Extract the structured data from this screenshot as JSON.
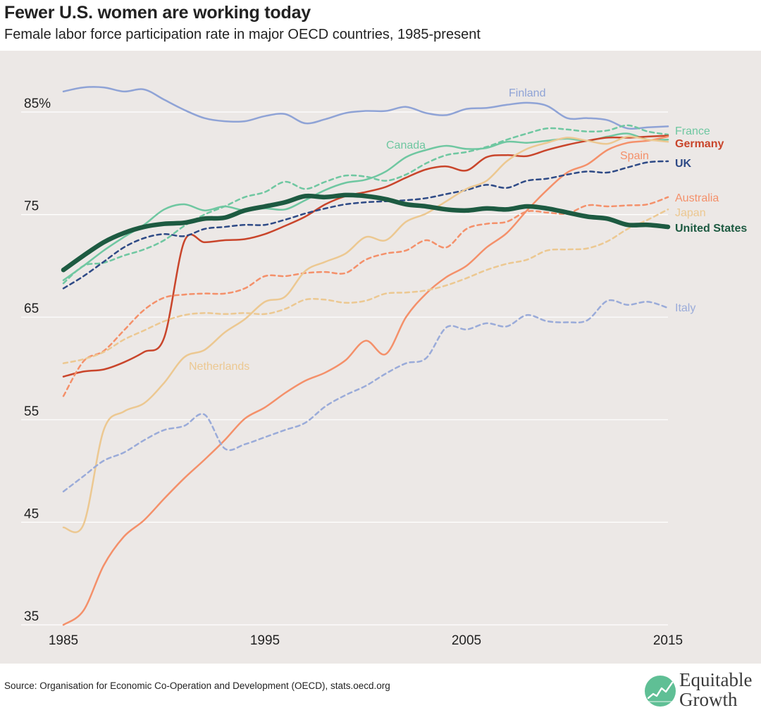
{
  "header": {
    "title": "Fewer U.S. women are working today",
    "subtitle": "Female labor force participation rate in major OECD countries, 1985-present"
  },
  "footer": {
    "source": "Source: Organisation for Economic Co-Operation and Development (OECD), stats.oecd.org",
    "logo_line1": "Equitable",
    "logo_line2": "Growth",
    "logo_icon": "rising-line-chart-circle-icon"
  },
  "colors": {
    "background": "#ece8e6",
    "grid": "#ffffff",
    "finland": "#8fa3d6",
    "france": "#6fc7a1",
    "germany": "#c9452b",
    "uk": "#2e4a86",
    "australia": "#f4906a",
    "japan": "#ecc891",
    "united_states": "#1d5a41",
    "italy": "#9aabd9",
    "canada": "#6fc7a1",
    "netherlands": "#ecc891",
    "spain": "#f4906a",
    "logo_green": "#5fbf95"
  },
  "chart_data": {
    "type": "line",
    "xlim": [
      1985,
      2015
    ],
    "ylim": [
      35,
      90
    ],
    "x_ticks": [
      1985,
      1995,
      2005,
      2015
    ],
    "x_tick_labels": [
      "1985",
      "1995",
      "2005",
      "2015"
    ],
    "y_ticks": [
      35,
      45,
      55,
      65,
      75,
      85
    ],
    "y_tick_labels": [
      "35",
      "45",
      "55",
      "65",
      "75",
      "85%"
    ],
    "x": [
      1985,
      1986,
      1987,
      1988,
      1989,
      1990,
      1991,
      1992,
      1993,
      1994,
      1995,
      1996,
      1997,
      1998,
      1999,
      2000,
      2001,
      2002,
      2003,
      2004,
      2005,
      2006,
      2007,
      2008,
      2009,
      2010,
      2011,
      2012,
      2013,
      2014,
      2015
    ],
    "series": [
      {
        "name": "Finland",
        "key": "finland",
        "dash": false,
        "width": 2.5,
        "label": "Finland",
        "values": [
          87.0,
          87.4,
          87.4,
          87.0,
          87.2,
          86.2,
          85.2,
          84.4,
          84.1,
          84.1,
          84.6,
          84.8,
          83.9,
          84.3,
          84.9,
          85.1,
          85.1,
          85.5,
          84.9,
          84.7,
          85.3,
          85.4,
          85.7,
          85.9,
          85.6,
          84.4,
          84.4,
          84.2,
          83.4,
          83.5,
          83.6
        ]
      },
      {
        "name": "France",
        "key": "france",
        "dash": true,
        "width": 2.5,
        "label": "France",
        "values": [
          68.3,
          70.0,
          70.3,
          71.0,
          71.6,
          72.5,
          73.9,
          75.0,
          75.8,
          76.7,
          77.2,
          78.2,
          77.5,
          78.2,
          78.8,
          78.7,
          78.3,
          78.9,
          80.0,
          80.8,
          81.1,
          81.6,
          82.3,
          82.9,
          83.4,
          83.3,
          83.1,
          83.2,
          83.7,
          83.1,
          82.8
        ]
      },
      {
        "name": "Canada",
        "key": "canada",
        "dash": false,
        "width": 2.5,
        "label": "Canada",
        "values": [
          68.6,
          70.0,
          71.5,
          72.8,
          74.0,
          75.5,
          76.0,
          75.4,
          75.8,
          75.4,
          75.6,
          75.5,
          76.4,
          77.4,
          78.1,
          78.4,
          79.2,
          80.6,
          81.3,
          81.7,
          81.4,
          81.5,
          82.1,
          82.0,
          82.2,
          82.4,
          82.2,
          82.6,
          82.9,
          82.3,
          82.3
        ]
      },
      {
        "name": "Germany",
        "key": "germany",
        "dash": false,
        "width": 2.5,
        "label": "Germany",
        "values": [
          59.2,
          59.7,
          59.9,
          60.6,
          61.6,
          63.0,
          72.4,
          72.3,
          72.5,
          72.6,
          73.1,
          73.9,
          74.8,
          76.0,
          76.8,
          77.2,
          77.7,
          78.6,
          79.4,
          79.7,
          79.3,
          80.6,
          80.8,
          80.7,
          81.3,
          81.8,
          82.2,
          82.5,
          82.5,
          82.6,
          82.7
        ]
      },
      {
        "name": "Spain",
        "key": "spain",
        "dash": false,
        "width": 2.5,
        "label": "Spain",
        "values": [
          35.0,
          36.4,
          40.8,
          43.6,
          45.2,
          47.3,
          49.3,
          51.1,
          53.0,
          55.1,
          56.2,
          57.6,
          58.8,
          59.6,
          60.8,
          62.7,
          61.4,
          65.0,
          67.3,
          68.9,
          70.0,
          71.8,
          73.2,
          75.4,
          77.4,
          79.1,
          79.9,
          81.3,
          82.0,
          82.2,
          82.6
        ]
      },
      {
        "name": "UK",
        "key": "uk",
        "dash": true,
        "width": 2.5,
        "label": "UK",
        "values": [
          67.8,
          69.0,
          70.4,
          71.8,
          72.7,
          73.1,
          72.9,
          73.6,
          73.8,
          74.0,
          74.0,
          74.5,
          75.1,
          75.6,
          76.0,
          76.2,
          76.3,
          76.4,
          76.6,
          77.0,
          77.4,
          77.9,
          77.6,
          78.3,
          78.5,
          78.9,
          79.2,
          79.1,
          79.6,
          80.1,
          80.2
        ]
      },
      {
        "name": "Australia",
        "key": "australia",
        "dash": true,
        "width": 2.5,
        "label": "Australia",
        "values": [
          57.3,
          60.7,
          61.7,
          63.7,
          65.7,
          66.9,
          67.2,
          67.3,
          67.3,
          67.8,
          69.0,
          69.0,
          69.3,
          69.4,
          69.3,
          70.6,
          71.2,
          71.5,
          72.5,
          71.8,
          73.6,
          74.1,
          74.3,
          75.3,
          75.2,
          75.1,
          75.9,
          75.8,
          75.9,
          76.0,
          76.7
        ]
      },
      {
        "name": "Netherlands",
        "key": "netherlands",
        "dash": false,
        "width": 2.5,
        "label": "Netherlands",
        "values": [
          44.5,
          44.8,
          54.0,
          55.8,
          56.6,
          58.6,
          61.1,
          61.8,
          63.5,
          64.8,
          66.5,
          67.0,
          69.5,
          70.4,
          71.2,
          72.8,
          72.5,
          74.3,
          75.1,
          76.3,
          77.5,
          78.3,
          80.2,
          81.4,
          82.0,
          82.5,
          82.2,
          81.9,
          82.6,
          82.3,
          82.1
        ]
      },
      {
        "name": "Japan",
        "key": "japan",
        "dash": true,
        "width": 2.5,
        "label": "Japan",
        "values": [
          60.5,
          60.9,
          61.6,
          62.8,
          63.7,
          64.6,
          65.2,
          65.4,
          65.3,
          65.4,
          65.3,
          65.8,
          66.7,
          66.7,
          66.4,
          66.6,
          67.3,
          67.4,
          67.6,
          68.1,
          68.8,
          69.6,
          70.2,
          70.6,
          71.5,
          71.6,
          71.7,
          72.4,
          73.6,
          74.5,
          75.5
        ]
      },
      {
        "name": "United States",
        "key": "united_states",
        "dash": false,
        "width": 6.5,
        "label": "United States",
        "values": [
          69.6,
          71.0,
          72.3,
          73.2,
          73.8,
          74.1,
          74.2,
          74.6,
          74.7,
          75.4,
          75.8,
          76.2,
          76.8,
          76.7,
          76.9,
          76.8,
          76.5,
          76.0,
          75.8,
          75.5,
          75.4,
          75.6,
          75.5,
          75.8,
          75.6,
          75.2,
          74.8,
          74.6,
          74.0,
          74.0,
          73.8
        ]
      },
      {
        "name": "Italy",
        "key": "italy",
        "dash": true,
        "width": 2.5,
        "label": "Italy",
        "values": [
          48.0,
          49.5,
          51.0,
          51.8,
          53.0,
          54.0,
          54.4,
          55.5,
          52.2,
          52.6,
          53.3,
          54.0,
          54.7,
          56.3,
          57.4,
          58.3,
          59.5,
          60.5,
          61.0,
          64.0,
          63.8,
          64.4,
          64.1,
          65.2,
          64.6,
          64.5,
          64.7,
          66.6,
          66.2,
          66.5,
          65.9
        ]
      }
    ]
  }
}
